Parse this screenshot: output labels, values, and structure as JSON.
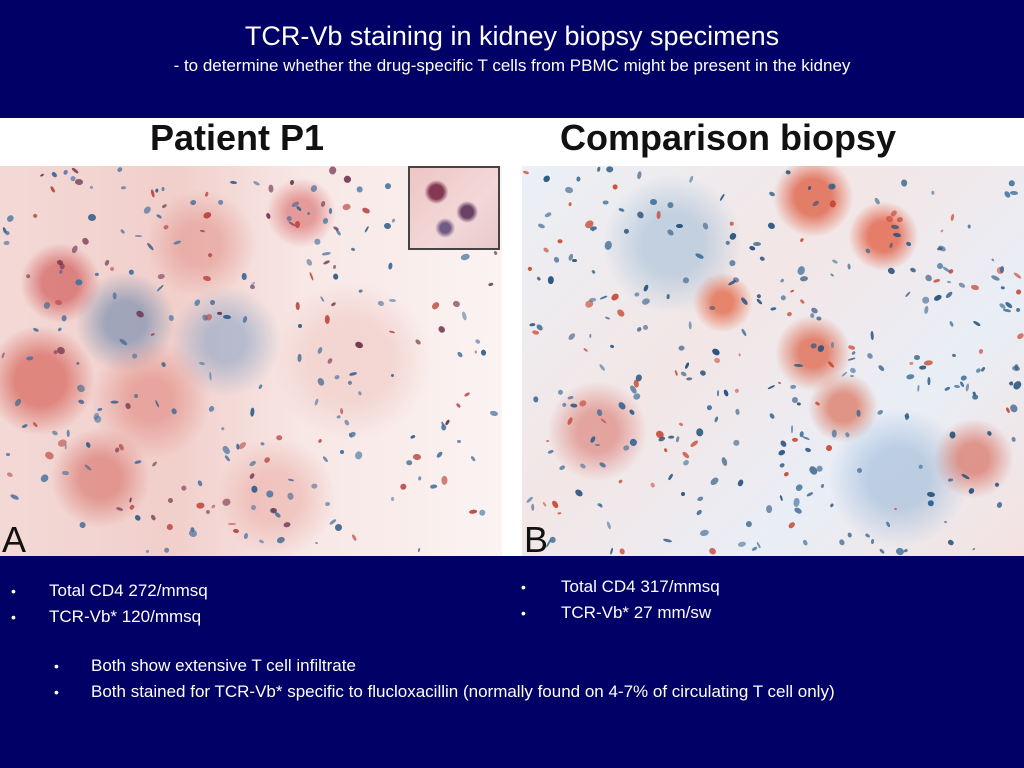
{
  "slide": {
    "title": "TCR-Vb staining in kidney biopsy specimens",
    "subtitle": "- to determine whether the drug-specific T cells from PBMC might be present in the kidney"
  },
  "figure": {
    "panel_a": {
      "heading": "Patient P1",
      "letter": "A"
    },
    "panel_b": {
      "heading": "Comparison biopsy",
      "letter": "B"
    }
  },
  "left_stats": [
    "Total CD4 272/mmsq",
    "TCR-Vb* 120/mmsq"
  ],
  "right_stats": [
    "Total CD4 317/mmsq",
    "TCR-Vb* 27 mm/sw"
  ],
  "summary": [
    "Both show extensive T cell infiltrate",
    "Both stained for TCR-Vb* specific to flucloxacillin (normally found on 4-7% of circulating T cell only)"
  ],
  "bullet_glyph": "•",
  "colors": {
    "background": "#000066",
    "text": "#ffffff",
    "stain_red": "#d9503c",
    "stain_blue": "#2a5a8a"
  }
}
